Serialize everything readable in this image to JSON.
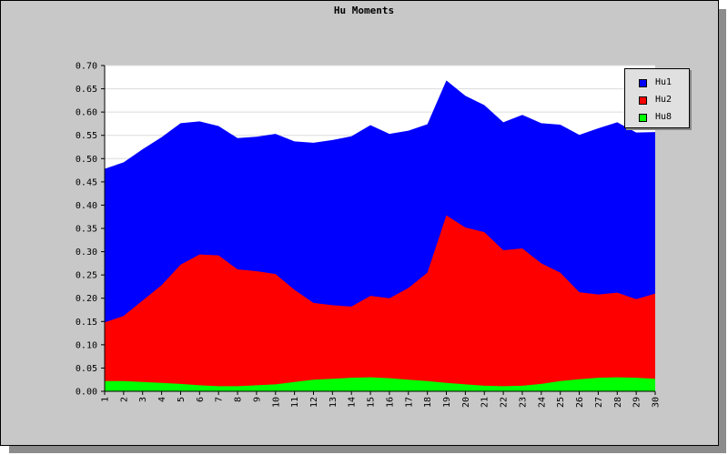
{
  "chart_data": {
    "type": "area",
    "stacked": true,
    "title": "Hu Moments",
    "xlabel": "",
    "ylabel": "",
    "categories": [
      "1",
      "2",
      "3",
      "4",
      "5",
      "6",
      "7",
      "8",
      "9",
      "10",
      "11",
      "12",
      "13",
      "14",
      "15",
      "16",
      "17",
      "18",
      "19",
      "20",
      "21",
      "22",
      "23",
      "24",
      "25",
      "26",
      "27",
      "28",
      "29",
      "30"
    ],
    "ylim": [
      0,
      0.7
    ],
    "yticks": [
      "0.00",
      "0.05",
      "0.10",
      "0.15",
      "0.20",
      "0.25",
      "0.30",
      "0.35",
      "0.40",
      "0.45",
      "0.50",
      "0.55",
      "0.60",
      "0.65",
      "0.70"
    ],
    "grid": true,
    "legend_position": "top-right",
    "series": [
      {
        "name": "Hu8",
        "color": "#00ff00",
        "values": [
          0.022,
          0.022,
          0.02,
          0.018,
          0.016,
          0.013,
          0.011,
          0.011,
          0.013,
          0.015,
          0.02,
          0.025,
          0.027,
          0.029,
          0.03,
          0.028,
          0.025,
          0.022,
          0.018,
          0.015,
          0.012,
          0.011,
          0.012,
          0.016,
          0.022,
          0.026,
          0.029,
          0.03,
          0.029,
          0.027
        ]
      },
      {
        "name": "Hu2",
        "color": "#ff0000",
        "values": [
          0.148,
          0.162,
          0.195,
          0.228,
          0.272,
          0.294,
          0.292,
          0.262,
          0.258,
          0.252,
          0.218,
          0.19,
          0.185,
          0.182,
          0.205,
          0.2,
          0.222,
          0.255,
          0.378,
          0.352,
          0.342,
          0.303,
          0.307,
          0.275,
          0.255,
          0.213,
          0.208,
          0.212,
          0.198,
          0.21
        ]
      },
      {
        "name": "Hu1",
        "color": "#0000ff",
        "values": [
          0.478,
          0.492,
          0.52,
          0.546,
          0.576,
          0.58,
          0.57,
          0.544,
          0.547,
          0.553,
          0.537,
          0.534,
          0.54,
          0.548,
          0.572,
          0.553,
          0.56,
          0.574,
          0.668,
          0.635,
          0.615,
          0.578,
          0.594,
          0.576,
          0.573,
          0.551,
          0.565,
          0.578,
          0.556,
          0.557
        ]
      }
    ]
  }
}
